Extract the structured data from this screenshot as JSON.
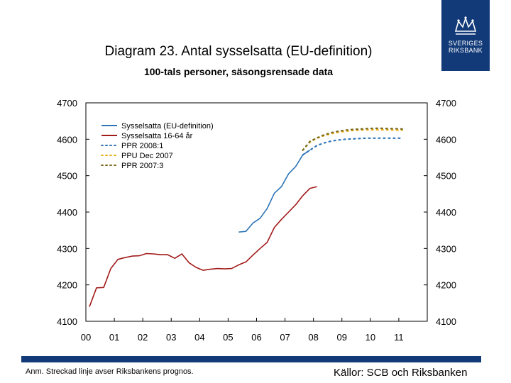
{
  "header": {
    "title": "Diagram 23. Antal sysselsatta (EU-definition)",
    "subtitle": "100-tals personer, säsongsrensade data"
  },
  "logo": {
    "line1": "SVERIGES",
    "line2": "RIKSBANK",
    "color": "#123a78"
  },
  "footer": {
    "note": "Anm. Streckad linje avser Riksbankens prognos.",
    "sources": "Källor: SCB och Riksbanken"
  },
  "chart_data": {
    "type": "line",
    "title": "Diagram 23. Antal sysselsatta (EU-definition)",
    "subtitle": "100-tals personer, säsongsrensade data",
    "xlabel": "",
    "ylabel": "",
    "x_range": [
      2000,
      2012
    ],
    "ylim": [
      4100,
      4700
    ],
    "y_ticks": [
      4100,
      4200,
      4300,
      4400,
      4500,
      4600,
      4700
    ],
    "x_tick_labels": [
      "00",
      "01",
      "02",
      "03",
      "04",
      "05",
      "06",
      "07",
      "08",
      "09",
      "10",
      "11"
    ],
    "y_tick_labels": [
      "4100",
      "4200",
      "4300",
      "4400",
      "4500",
      "4600",
      "4700"
    ],
    "legend_position": "top-left",
    "series": [
      {
        "name": "Sysselsatta  (EU-definition)",
        "color": "#2e75b6",
        "style": "solid",
        "points": [
          [
            2005.375,
            4345
          ],
          [
            2005.625,
            4347
          ],
          [
            2005.875,
            4370
          ],
          [
            2006.125,
            4383
          ],
          [
            2006.375,
            4410
          ],
          [
            2006.625,
            4452
          ],
          [
            2006.875,
            4470
          ],
          [
            2007.125,
            4505
          ],
          [
            2007.375,
            4525
          ],
          [
            2007.625,
            4557
          ],
          [
            2007.875,
            4570
          ]
        ]
      },
      {
        "name": "Sysselsatta 16-64 år",
        "color": "#a21a1a",
        "style": "solid",
        "points": [
          [
            2000.125,
            4140
          ],
          [
            2000.375,
            4192
          ],
          [
            2000.625,
            4193
          ],
          [
            2000.875,
            4245
          ],
          [
            2001.125,
            4270
          ],
          [
            2001.375,
            4275
          ],
          [
            2001.625,
            4279
          ],
          [
            2001.875,
            4280
          ],
          [
            2002.125,
            4286
          ],
          [
            2002.375,
            4285
          ],
          [
            2002.625,
            4283
          ],
          [
            2002.875,
            4283
          ],
          [
            2003.125,
            4273
          ],
          [
            2003.375,
            4285
          ],
          [
            2003.625,
            4261
          ],
          [
            2003.875,
            4248
          ],
          [
            2004.125,
            4240
          ],
          [
            2004.375,
            4243
          ],
          [
            2004.625,
            4245
          ],
          [
            2004.875,
            4244
          ],
          [
            2005.125,
            4245
          ],
          [
            2005.375,
            4255
          ],
          [
            2005.625,
            4263
          ],
          [
            2005.875,
            4282
          ],
          [
            2006.125,
            4300
          ],
          [
            2006.375,
            4317
          ],
          [
            2006.625,
            4358
          ],
          [
            2006.875,
            4380
          ],
          [
            2007.125,
            4400
          ],
          [
            2007.375,
            4420
          ],
          [
            2007.625,
            4445
          ],
          [
            2007.875,
            4465
          ],
          [
            2008.125,
            4470
          ]
        ]
      },
      {
        "name": "PPR 2008:1",
        "color": "#2e75b6",
        "style": "dotted",
        "points": [
          [
            2007.625,
            4557
          ],
          [
            2007.875,
            4570
          ],
          [
            2008.125,
            4583
          ],
          [
            2008.375,
            4590
          ],
          [
            2008.625,
            4595
          ],
          [
            2008.875,
            4598
          ],
          [
            2009.125,
            4600
          ],
          [
            2009.375,
            4601
          ],
          [
            2009.625,
            4602
          ],
          [
            2009.875,
            4603
          ],
          [
            2010.125,
            4603
          ],
          [
            2010.375,
            4603
          ],
          [
            2010.625,
            4603
          ],
          [
            2010.875,
            4603
          ],
          [
            2011.125,
            4603
          ]
        ]
      },
      {
        "name": "PPU Dec 2007",
        "color": "#e8b020",
        "style": "dotted",
        "points": [
          [
            2007.625,
            4570
          ],
          [
            2007.875,
            4592
          ],
          [
            2008.125,
            4603
          ],
          [
            2008.375,
            4610
          ],
          [
            2008.625,
            4615
          ],
          [
            2008.875,
            4619
          ],
          [
            2009.125,
            4622
          ],
          [
            2009.375,
            4624
          ],
          [
            2009.625,
            4625
          ],
          [
            2009.875,
            4626
          ],
          [
            2010.125,
            4626
          ],
          [
            2010.375,
            4626
          ],
          [
            2010.625,
            4626
          ],
          [
            2010.875,
            4625
          ],
          [
            2011.125,
            4625
          ]
        ]
      },
      {
        "name": "PPR 2007:3",
        "color": "#7a6a1e",
        "style": "dotted",
        "points": [
          [
            2007.625,
            4570
          ],
          [
            2007.875,
            4594
          ],
          [
            2008.125,
            4604
          ],
          [
            2008.375,
            4612
          ],
          [
            2008.625,
            4618
          ],
          [
            2008.875,
            4622
          ],
          [
            2009.125,
            4625
          ],
          [
            2009.375,
            4627
          ],
          [
            2009.625,
            4628
          ],
          [
            2009.875,
            4629
          ],
          [
            2010.125,
            4630
          ],
          [
            2010.375,
            4630
          ],
          [
            2010.625,
            4629
          ],
          [
            2010.875,
            4629
          ],
          [
            2011.125,
            4628
          ]
        ]
      }
    ]
  }
}
